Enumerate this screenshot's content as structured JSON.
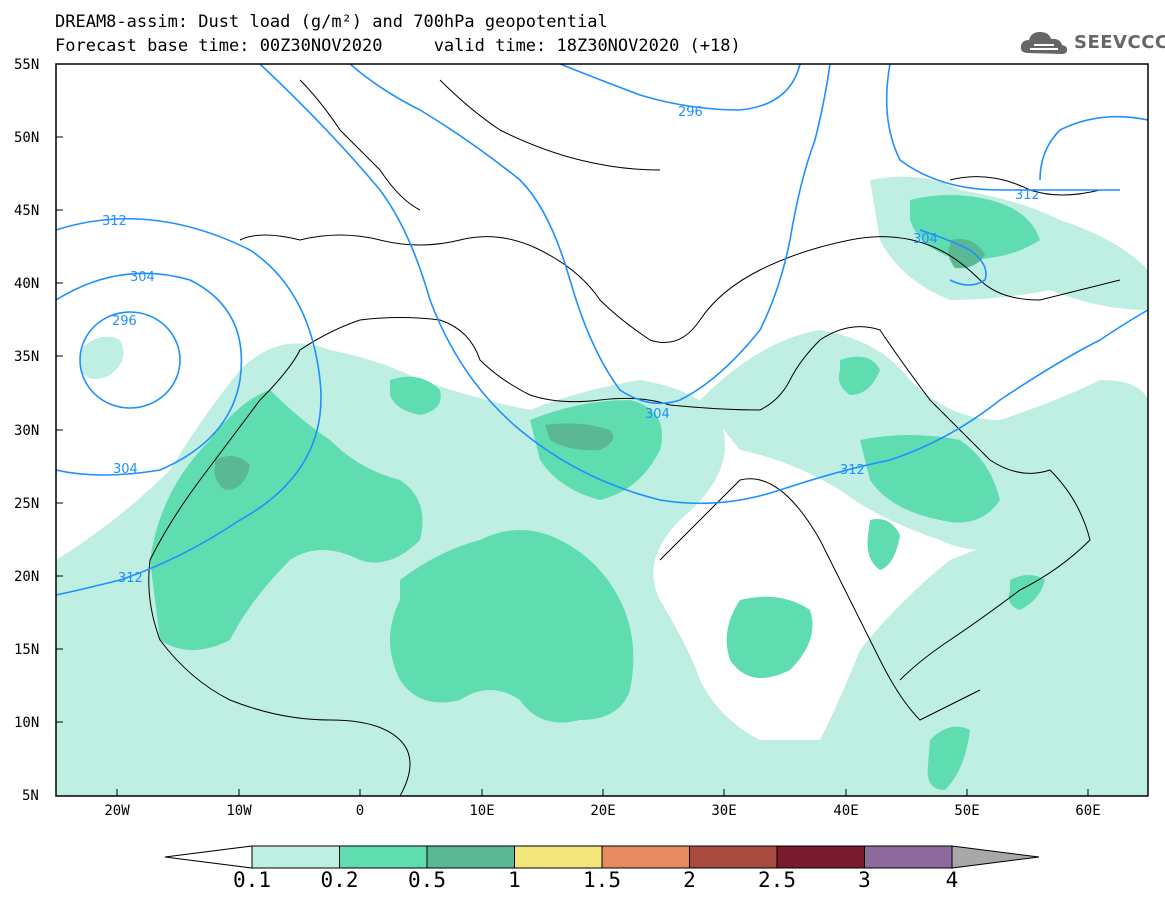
{
  "header": {
    "title_line1": "DREAM8-assim: Dust load (g/m²) and 700hPa geopotential",
    "title_line2": "Forecast base time: 00Z30NOV2020     valid time: 18Z30NOV2020 (+18)",
    "logo_text": "SEEVCCC",
    "logo_icon": "cloud-icon"
  },
  "map": {
    "lat_labels": [
      "55N",
      "50N",
      "45N",
      "40N",
      "35N",
      "30N",
      "25N",
      "20N",
      "15N",
      "10N",
      "5N"
    ],
    "lon_labels": [
      "20W",
      "10W",
      "0",
      "10E",
      "20E",
      "30E",
      "40E",
      "50E",
      "60E"
    ],
    "contour_color": "#1e90ff",
    "geopotential_labels": [
      "296",
      "312",
      "304",
      "296",
      "304",
      "312",
      "304",
      "312",
      "312",
      "304"
    ]
  },
  "legend": {
    "colors": [
      "#bfeee3",
      "#5fdcb0",
      "#5ab894",
      "#f2e57a",
      "#e58a62",
      "#a84a3e",
      "#7a1a2e",
      "#8c6a9e"
    ],
    "over_color": "#a8a8a8",
    "under_color": "#ffffff",
    "labels": [
      "0.1",
      "0.2",
      "0.5",
      "1",
      "1.5",
      "2",
      "2.5",
      "3",
      "4"
    ]
  }
}
